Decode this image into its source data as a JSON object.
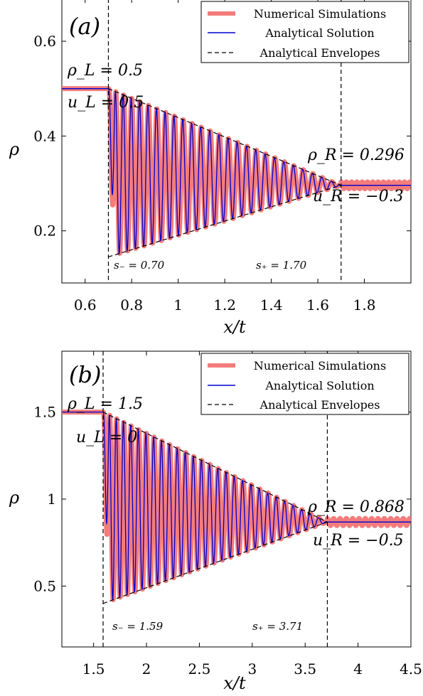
{
  "chart_data": [
    {
      "type": "line",
      "panel_label": "(a)",
      "xlabel": "x/t",
      "ylabel": "ρ",
      "xlim": [
        0.5,
        2.0
      ],
      "ylim": [
        0.09,
        0.69
      ],
      "xticks": [
        0.6,
        0.8,
        1.0,
        1.2,
        1.4,
        1.6,
        1.8
      ],
      "xtick_labels": [
        "0.6",
        "0.8",
        "1",
        "1.2",
        "1.4",
        "1.6",
        "1.8"
      ],
      "yticks": [
        0.2,
        0.4,
        0.6
      ],
      "ytick_labels": [
        "0.2",
        "0.4",
        "0.6"
      ],
      "legend_position": "top-right",
      "legend": [
        "Numerical Simulations",
        "Analytical Solution",
        "Analytical Envelopes"
      ],
      "left_state": {
        "rho": 0.5,
        "rho_label": "ρ_L = 0.5",
        "u_label": "u_L = 0.5"
      },
      "right_state": {
        "rho": 0.296,
        "rho_label": "ρ_R = 0.296",
        "u_label": "u_R = −0.3"
      },
      "s_minus": {
        "value": 0.7,
        "label": "s₋ = 0.70"
      },
      "s_plus": {
        "value": 1.7,
        "label": "s₊ = 1.70"
      },
      "envelope_upper": [
        [
          0.7,
          0.5
        ],
        [
          1.7,
          0.296
        ]
      ],
      "envelope_lower": [
        [
          0.7,
          0.145
        ],
        [
          1.7,
          0.296
        ]
      ],
      "oscillation_min": 0.15,
      "oscillation_periods": 26,
      "series": [
        {
          "name": "Numerical Simulations",
          "color": "#f47c7c"
        },
        {
          "name": "Analytical Solution",
          "color": "#0000cc"
        },
        {
          "name": "Analytical Envelopes",
          "color": "#000000"
        }
      ]
    },
    {
      "type": "line",
      "panel_label": "(b)",
      "xlabel": "x/t",
      "ylabel": "ρ",
      "xlim": [
        1.2,
        4.5
      ],
      "ylim": [
        0.15,
        1.85
      ],
      "xticks": [
        1.5,
        2.0,
        2.5,
        3.0,
        3.5,
        4.0,
        4.5
      ],
      "xtick_labels": [
        "1.5",
        "2",
        "2.5",
        "3",
        "3.5",
        "4",
        "4.5"
      ],
      "yticks": [
        0.5,
        1.0,
        1.5
      ],
      "ytick_labels": [
        "0.5",
        "1",
        "1.5"
      ],
      "legend_position": "top-right",
      "legend": [
        "Numerical Simulations",
        "Analytical Solution",
        "Analytical Envelopes"
      ],
      "left_state": {
        "rho": 1.5,
        "rho_label": "ρ_L = 1.5",
        "u_label": "u_L = 0"
      },
      "right_state": {
        "rho": 0.868,
        "rho_label": "ρ_R = 0.868",
        "u_label": "u_R = −0.5"
      },
      "s_minus": {
        "value": 1.59,
        "label": "s₋ = 1.59"
      },
      "s_plus": {
        "value": 3.71,
        "label": "s₊ = 3.71"
      },
      "envelope_upper": [
        [
          1.59,
          1.5
        ],
        [
          3.71,
          0.868
        ]
      ],
      "envelope_lower": [
        [
          1.59,
          0.4
        ],
        [
          3.71,
          0.868
        ]
      ],
      "oscillation_min": 0.42,
      "oscillation_periods": 28,
      "series": [
        {
          "name": "Numerical Simulations",
          "color": "#f47c7c"
        },
        {
          "name": "Analytical Solution",
          "color": "#0000cc"
        },
        {
          "name": "Analytical Envelopes",
          "color": "#000000"
        }
      ]
    }
  ]
}
